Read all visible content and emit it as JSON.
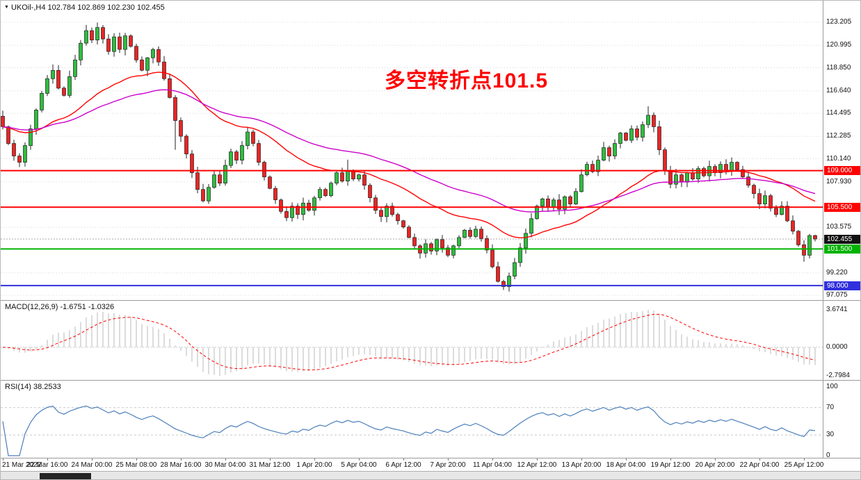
{
  "icons": {
    "readout_marker": "▼"
  },
  "main_chart": {
    "readout": "UKOil-,H4 102.784 102.869 102.230 102.455",
    "annotation": {
      "text": "多空转折点101.5",
      "color": "#ff0000"
    },
    "y_axis_labels": [
      "123.205",
      "120.995",
      "118.850",
      "116.640",
      "114.495",
      "112.285",
      "110.140",
      "107.930",
      "103.575",
      "99.220",
      "97.075"
    ],
    "hlines": [
      {
        "price": 109.0,
        "label": "109.000",
        "color": "#ff0000",
        "width": 2
      },
      {
        "price": 105.5,
        "label": "105.500",
        "color": "#ff0000",
        "width": 2
      },
      {
        "price": 101.5,
        "label": "101.500",
        "color": "#00b300",
        "width": 2
      },
      {
        "price": 98.0,
        "label": "98.000",
        "color": "#3030dd",
        "width": 2
      }
    ],
    "current_price": {
      "value": 102.455,
      "label": "102.455",
      "bg": "#111111",
      "line_color": "#aaaaaa"
    }
  },
  "chart_data": {
    "type": "candlestick",
    "symbol": "UKOil-",
    "timeframe": "H4",
    "ohlc_last": {
      "open": 102.784,
      "high": 102.869,
      "low": 102.23,
      "close": 102.455
    },
    "y_axis": {
      "max": 123.205,
      "min": 97.075
    },
    "x_labels": [
      "21 Mar 2022",
      "22 Mar 16:00",
      "24 Mar 00:00",
      "25 Mar 08:00",
      "28 Mar 16:00",
      "30 Mar 04:00",
      "31 Mar 12:00",
      "1 Apr 20:00",
      "5 Apr 04:00",
      "6 Apr 12:00",
      "7 Apr 20:00",
      "11 Apr 04:00",
      "12 Apr 12:00",
      "13 Apr 20:00",
      "18 Apr 04:00",
      "19 Apr 12:00",
      "20 Apr 20:00",
      "22 Apr 04:00",
      "25 Apr 12:00"
    ],
    "open_first": 114.2,
    "closes": [
      113.2,
      111.6,
      110.4,
      109.8,
      111.4,
      113.0,
      114.8,
      116.4,
      117.8,
      118.6,
      116.9,
      116.2,
      118.0,
      119.6,
      121.2,
      122.4,
      121.5,
      122.7,
      121.6,
      120.4,
      121.8,
      120.6,
      121.9,
      120.9,
      119.6,
      118.6,
      119.8,
      120.6,
      119.4,
      117.8,
      116.0,
      113.8,
      112.3,
      110.6,
      108.8,
      107.2,
      106.1,
      107.4,
      108.6,
      107.8,
      109.5,
      110.8,
      110.0,
      111.4,
      112.7,
      111.6,
      109.8,
      108.4,
      107.3,
      106.2,
      105.1,
      104.5,
      105.6,
      104.8,
      105.9,
      105.2,
      106.4,
      107.2,
      106.6,
      107.8,
      108.8,
      108.0,
      109.0,
      108.2,
      108.6,
      107.6,
      106.4,
      105.2,
      104.6,
      105.6,
      104.8,
      104.2,
      103.6,
      102.6,
      101.8,
      101.1,
      102.0,
      101.3,
      102.4,
      101.6,
      100.9,
      101.8,
      102.6,
      103.3,
      102.7,
      103.4,
      102.5,
      101.4,
      99.8,
      98.4,
      97.9,
      98.9,
      100.2,
      101.6,
      103.0,
      104.4,
      105.6,
      106.3,
      105.5,
      106.2,
      105.3,
      106.5,
      105.8,
      107.0,
      108.6,
      109.6,
      108.9,
      110.0,
      111.2,
      110.4,
      111.6,
      112.6,
      111.9,
      113.0,
      112.2,
      113.4,
      114.3,
      113.2,
      111.0,
      109.0,
      107.7,
      108.6,
      107.9,
      108.8,
      108.2,
      109.2,
      108.5,
      109.4,
      108.8,
      109.6,
      109.0,
      109.8,
      109.1,
      108.4,
      107.6,
      106.8,
      105.8,
      106.6,
      105.4,
      104.8,
      105.6,
      104.2,
      103.2,
      101.9,
      100.9,
      102.784,
      102.455
    ],
    "wick_overrides": {
      "17": {
        "h": 123.18
      },
      "31": {
        "l": 111.0
      },
      "62": {
        "h": 110.05
      },
      "90": {
        "l": 97.58
      },
      "116": {
        "h": 115.16
      },
      "144": {
        "l": 100.28
      },
      "145": {
        "h": 102.95,
        "l": 100.6
      },
      "146": {
        "h": 102.869,
        "l": 102.23
      }
    },
    "colors": {
      "bull": "#2ebd3e",
      "bear": "#ea2424",
      "wick": "#222222",
      "grid": "#d8d8d8"
    },
    "moving_averages": [
      {
        "name": "ma-red",
        "period": 30,
        "color": "#ff0000"
      },
      {
        "name": "ma-magenta",
        "period": 58,
        "color": "#cc00cc"
      }
    ],
    "indicators": {
      "macd": {
        "label": "MACD(12,26,9) -1.6751 -1.0326",
        "params": [
          12,
          26,
          9
        ],
        "values_display": {
          "main": -1.6751,
          "signal": -1.0326
        },
        "axis": [
          "3.6741",
          "0.0000",
          "-2.7984"
        ],
        "range": {
          "max": 3.6741,
          "min": -2.7984
        },
        "histogram_color": "#b8b8b8",
        "signal_color": "#ff0000"
      },
      "rsi": {
        "label": "RSI(14) 38.2533",
        "period": 14,
        "value_display": 38.2533,
        "axis": [
          "100",
          "70",
          "30",
          "0"
        ],
        "levels": [
          70,
          30
        ],
        "color": "#4a7ebb"
      }
    }
  }
}
